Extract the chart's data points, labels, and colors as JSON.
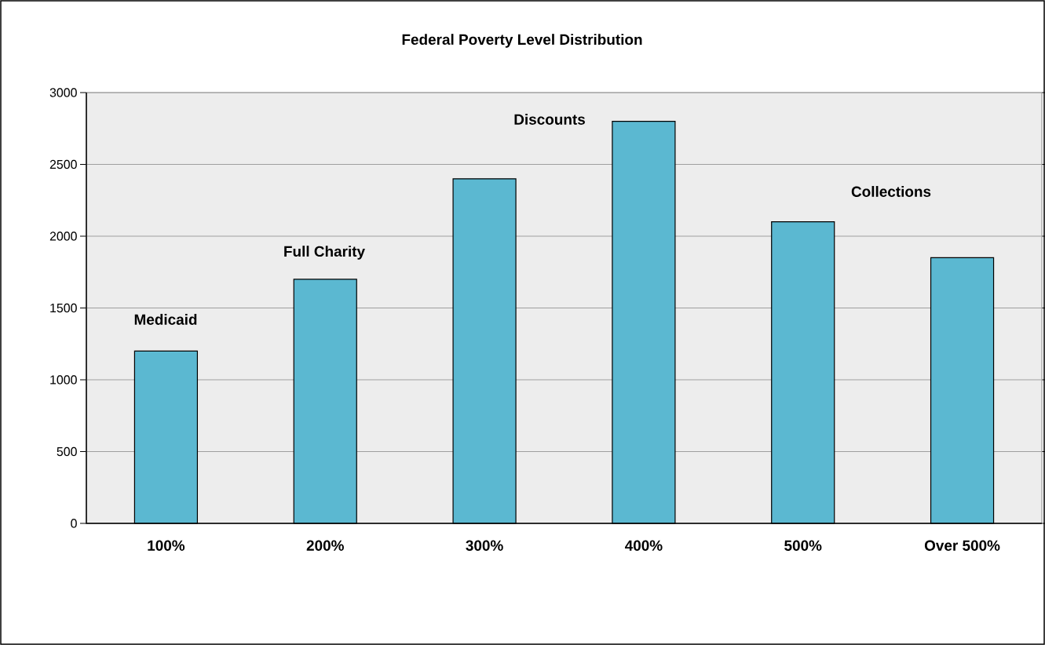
{
  "chart_data": {
    "type": "bar",
    "title": "Federal Poverty Level Distribution",
    "categories": [
      "100%",
      "200%",
      "300%",
      "400%",
      "500%",
      "Over 500%"
    ],
    "values": [
      1200,
      1700,
      2400,
      2800,
      2100,
      1850
    ],
    "color": "#5bb8d1",
    "ylim": [
      0,
      3000
    ],
    "yticks": [
      0,
      500,
      1000,
      1500,
      2000,
      2500,
      3000
    ],
    "grid": "y",
    "annotations": [
      "Medicaid",
      "Full Charity",
      "Discounts",
      "Collections"
    ]
  }
}
